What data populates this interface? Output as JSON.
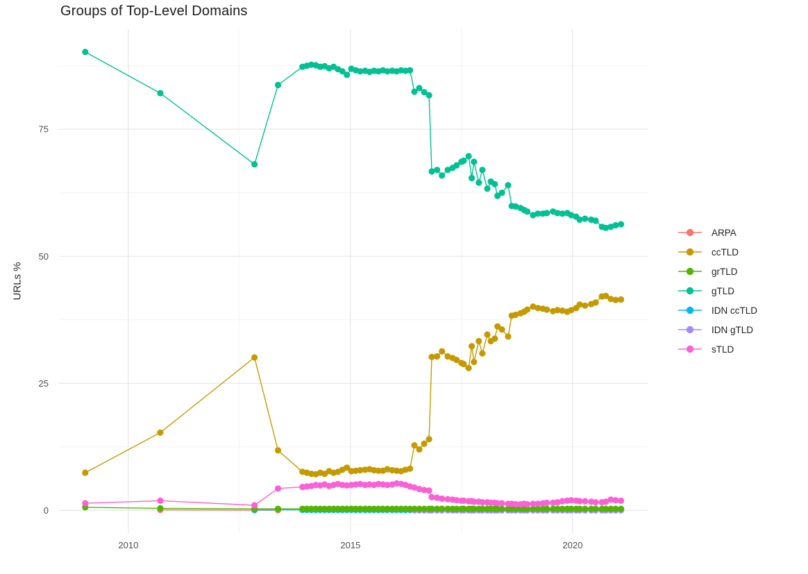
{
  "chart_data": {
    "type": "line",
    "title": "Groups of Top-Level Domains",
    "xlabel": "",
    "ylabel": "URLs %",
    "x_ticks": [
      2010,
      2015,
      2020
    ],
    "x_minor_ticks": [
      2012.5,
      2017.5
    ],
    "y_ticks": [
      0,
      25,
      50,
      75
    ],
    "y_minor_ticks": [
      12.5,
      37.5,
      62.5,
      87.5
    ],
    "xlim": [
      2008.44,
      2021.69
    ],
    "ylim": [
      -4.6,
      94.7
    ],
    "grid": true,
    "legend_position": "right",
    "draw_order": [
      "ARPA",
      "IDN ccTLD",
      "IDN gTLD",
      "grTLD",
      "ccTLD",
      "gTLD",
      "sTLD"
    ],
    "series": [
      {
        "name": "ARPA",
        "color": "#F8766D",
        "x": [
          2010.72,
          2012.84,
          2013.37
        ],
        "y": [
          0.1,
          0.05,
          0.05
        ]
      },
      {
        "name": "ccTLD",
        "color": "#C49A00",
        "x": [
          2009.03,
          2010.72,
          2012.84,
          2013.37,
          2013.92,
          2014.02,
          2014.12,
          2014.22,
          2014.32,
          2014.42,
          2014.52,
          2014.62,
          2014.72,
          2014.82,
          2014.92,
          2015.02,
          2015.12,
          2015.22,
          2015.33,
          2015.43,
          2015.53,
          2015.63,
          2015.73,
          2015.83,
          2015.94,
          2016.04,
          2016.14,
          2016.24,
          2016.34,
          2016.44,
          2016.55,
          2016.66,
          2016.77,
          2016.83,
          2016.95,
          2017.06,
          2017.19,
          2017.3,
          2017.39,
          2017.5,
          2017.55,
          2017.66,
          2017.73,
          2017.78,
          2017.89,
          2017.97,
          2018.08,
          2018.16,
          2018.25,
          2018.31,
          2018.41,
          2018.55,
          2018.63,
          2018.72,
          2018.83,
          2018.91,
          2018.98,
          2019.11,
          2019.22,
          2019.33,
          2019.42,
          2019.56,
          2019.66,
          2019.77,
          2019.88,
          2019.97,
          2020.08,
          2020.16,
          2020.28,
          2020.42,
          2020.52,
          2020.66,
          2020.75,
          2020.86,
          2020.97,
          2021.09
        ],
        "y": [
          7.4,
          15.3,
          30.1,
          11.8,
          7.6,
          7.4,
          7.2,
          7.1,
          7.4,
          7.2,
          7.7,
          7.4,
          7.6,
          8.0,
          8.4,
          7.7,
          7.8,
          7.9,
          8.0,
          8.1,
          7.9,
          7.8,
          7.8,
          8.1,
          7.9,
          7.8,
          7.7,
          8.0,
          8.2,
          12.8,
          12.0,
          13.1,
          14.0,
          30.2,
          30.3,
          31.3,
          30.3,
          30.0,
          29.6,
          29.0,
          28.8,
          28.0,
          32.3,
          29.2,
          33.3,
          30.9,
          34.6,
          33.3,
          33.8,
          36.2,
          35.6,
          34.2,
          38.3,
          38.5,
          38.8,
          39.1,
          39.5,
          40.1,
          39.8,
          39.7,
          39.5,
          39.2,
          39.4,
          39.3,
          39.1,
          39.4,
          39.8,
          40.5,
          40.3,
          40.6,
          40.9,
          42.1,
          42.2,
          41.6,
          41.4,
          41.5
        ]
      },
      {
        "name": "grTLD",
        "color": "#53B400",
        "x": [
          2009.03,
          2010.72,
          2012.84,
          2013.37,
          2013.92,
          2014.02,
          2014.12,
          2014.22,
          2014.32,
          2014.42,
          2014.52,
          2014.62,
          2014.72,
          2014.82,
          2014.92,
          2015.02,
          2015.12,
          2015.22,
          2015.33,
          2015.43,
          2015.53,
          2015.63,
          2015.73,
          2015.83,
          2015.94,
          2016.04,
          2016.14,
          2016.24,
          2016.34,
          2016.44,
          2016.55,
          2016.66,
          2016.77,
          2016.83,
          2016.95,
          2017.06,
          2017.19,
          2017.3,
          2017.39,
          2017.5,
          2017.55,
          2017.66,
          2017.73,
          2017.78,
          2017.89,
          2017.97,
          2018.08,
          2018.16,
          2018.25,
          2018.31,
          2018.41,
          2018.55,
          2018.63,
          2018.72,
          2018.83,
          2018.91,
          2018.98,
          2019.11,
          2019.22,
          2019.33,
          2019.42,
          2019.56,
          2019.66,
          2019.77,
          2019.88,
          2019.97,
          2020.08,
          2020.16,
          2020.28,
          2020.42,
          2020.52,
          2020.66,
          2020.75,
          2020.86,
          2020.97,
          2021.09
        ],
        "y": [
          0.6,
          0.4,
          0.3,
          0.3,
          0.3,
          0.3,
          0.3,
          0.3,
          0.3,
          0.3,
          0.3,
          0.3,
          0.3,
          0.3,
          0.3,
          0.3,
          0.3,
          0.3,
          0.3,
          0.3,
          0.3,
          0.3,
          0.3,
          0.3,
          0.3,
          0.3,
          0.3,
          0.3,
          0.3,
          0.3,
          0.3,
          0.3,
          0.3,
          0.3,
          0.3,
          0.3,
          0.3,
          0.3,
          0.3,
          0.3,
          0.3,
          0.3,
          0.3,
          0.3,
          0.3,
          0.3,
          0.3,
          0.3,
          0.3,
          0.3,
          0.3,
          0.3,
          0.3,
          0.3,
          0.3,
          0.3,
          0.3,
          0.3,
          0.3,
          0.3,
          0.3,
          0.3,
          0.3,
          0.3,
          0.3,
          0.3,
          0.3,
          0.3,
          0.3,
          0.3,
          0.3,
          0.3,
          0.3,
          0.3,
          0.3,
          0.3
        ]
      },
      {
        "name": "gTLD",
        "color": "#00C094",
        "x": [
          2009.03,
          2010.72,
          2012.84,
          2013.37,
          2013.92,
          2014.02,
          2014.12,
          2014.22,
          2014.32,
          2014.42,
          2014.52,
          2014.62,
          2014.72,
          2014.82,
          2014.92,
          2015.02,
          2015.12,
          2015.22,
          2015.33,
          2015.43,
          2015.53,
          2015.63,
          2015.73,
          2015.83,
          2015.94,
          2016.04,
          2016.14,
          2016.24,
          2016.34,
          2016.44,
          2016.55,
          2016.66,
          2016.77,
          2016.83,
          2016.95,
          2017.06,
          2017.19,
          2017.3,
          2017.39,
          2017.5,
          2017.55,
          2017.66,
          2017.73,
          2017.78,
          2017.89,
          2017.97,
          2018.08,
          2018.16,
          2018.25,
          2018.31,
          2018.41,
          2018.55,
          2018.63,
          2018.72,
          2018.83,
          2018.91,
          2018.98,
          2019.11,
          2019.22,
          2019.33,
          2019.42,
          2019.56,
          2019.66,
          2019.77,
          2019.88,
          2019.97,
          2020.08,
          2020.16,
          2020.28,
          2020.42,
          2020.52,
          2020.66,
          2020.75,
          2020.86,
          2020.97,
          2021.09
        ],
        "y": [
          90.2,
          82.1,
          68.1,
          83.7,
          87.3,
          87.5,
          87.7,
          87.6,
          87.3,
          87.4,
          87.0,
          87.3,
          86.8,
          86.4,
          85.7,
          86.9,
          86.6,
          86.4,
          86.5,
          86.3,
          86.5,
          86.4,
          86.6,
          86.4,
          86.5,
          86.4,
          86.6,
          86.5,
          86.6,
          82.4,
          83.1,
          82.3,
          81.7,
          66.7,
          67.0,
          65.9,
          67.0,
          67.4,
          67.9,
          68.6,
          68.8,
          69.7,
          65.4,
          68.6,
          64.5,
          67.0,
          63.3,
          64.7,
          64.2,
          61.9,
          62.5,
          64.0,
          59.9,
          59.8,
          59.5,
          59.1,
          58.8,
          58.1,
          58.4,
          58.4,
          58.5,
          58.8,
          58.5,
          58.4,
          58.5,
          58.1,
          57.8,
          57.2,
          57.4,
          57.2,
          57.0,
          55.8,
          55.6,
          55.8,
          56.1,
          56.3
        ]
      },
      {
        "name": "IDN ccTLD",
        "color": "#00B6EB",
        "x": [
          2012.84,
          2013.92,
          2014.02,
          2014.12,
          2014.22,
          2014.32,
          2014.42,
          2014.52,
          2014.62,
          2014.72,
          2014.82,
          2014.92,
          2015.02,
          2015.12,
          2015.22,
          2015.33,
          2015.43,
          2015.53,
          2015.63,
          2015.73,
          2015.83,
          2015.94,
          2016.04,
          2016.14,
          2016.24,
          2016.34,
          2016.44,
          2016.55,
          2016.66,
          2016.77,
          2016.83,
          2016.95,
          2017.06,
          2017.19,
          2017.3,
          2017.39,
          2017.5,
          2017.55,
          2017.66,
          2017.73,
          2017.78,
          2017.89,
          2017.97,
          2018.08,
          2018.16,
          2018.25,
          2018.31,
          2018.41,
          2018.55,
          2018.63,
          2018.72,
          2018.83,
          2018.91,
          2018.98,
          2019.11,
          2019.22,
          2019.33,
          2019.42,
          2019.56,
          2019.66,
          2019.77,
          2019.88,
          2019.97,
          2020.08,
          2020.16,
          2020.28,
          2020.42,
          2020.52,
          2020.66,
          2020.75,
          2020.86,
          2020.97,
          2021.09
        ],
        "y": 0.1
      },
      {
        "name": "IDN gTLD",
        "color": "#A58AFF",
        "x": [
          2016.44,
          2016.55,
          2016.66,
          2016.77,
          2016.83,
          2016.95,
          2017.06,
          2017.19,
          2017.3,
          2017.39,
          2017.5,
          2017.55,
          2017.66,
          2017.73,
          2017.78,
          2017.89,
          2017.97,
          2018.08,
          2018.16,
          2018.25,
          2018.31,
          2018.41,
          2018.55,
          2018.63,
          2018.72,
          2018.83,
          2018.91,
          2018.98,
          2019.11,
          2019.22,
          2019.33,
          2019.42,
          2019.56,
          2019.66,
          2019.77,
          2019.88,
          2019.97,
          2020.08,
          2020.16,
          2020.28,
          2020.42,
          2020.52,
          2020.66,
          2020.75,
          2020.86,
          2020.97,
          2021.09
        ],
        "y": 0.0
      },
      {
        "name": "sTLD",
        "color": "#FB61D7",
        "x": [
          2009.03,
          2010.72,
          2012.84,
          2013.37,
          2013.92,
          2014.02,
          2014.12,
          2014.22,
          2014.32,
          2014.42,
          2014.52,
          2014.62,
          2014.72,
          2014.82,
          2014.92,
          2015.02,
          2015.12,
          2015.22,
          2015.33,
          2015.43,
          2015.53,
          2015.63,
          2015.73,
          2015.83,
          2015.94,
          2016.04,
          2016.14,
          2016.24,
          2016.34,
          2016.44,
          2016.55,
          2016.66,
          2016.77,
          2016.83,
          2016.95,
          2017.06,
          2017.19,
          2017.3,
          2017.39,
          2017.5,
          2017.55,
          2017.66,
          2017.73,
          2017.78,
          2017.89,
          2017.97,
          2018.08,
          2018.16,
          2018.25,
          2018.31,
          2018.41,
          2018.55,
          2018.63,
          2018.72,
          2018.83,
          2018.91,
          2018.98,
          2019.11,
          2019.22,
          2019.33,
          2019.42,
          2019.56,
          2019.66,
          2019.77,
          2019.88,
          2019.97,
          2020.08,
          2020.16,
          2020.28,
          2020.42,
          2020.52,
          2020.66,
          2020.75,
          2020.86,
          2020.97,
          2021.09
        ],
        "y": [
          1.4,
          1.9,
          1.0,
          4.3,
          4.6,
          4.7,
          4.8,
          5.0,
          4.9,
          5.1,
          4.8,
          5.0,
          5.2,
          5.0,
          4.9,
          5.0,
          5.1,
          5.2,
          5.0,
          5.1,
          5.0,
          5.2,
          5.1,
          5.0,
          5.1,
          5.3,
          5.2,
          5.0,
          4.7,
          4.5,
          4.2,
          4.0,
          3.9,
          2.6,
          2.5,
          2.3,
          2.2,
          2.1,
          2.0,
          1.9,
          1.9,
          1.8,
          1.8,
          1.7,
          1.7,
          1.6,
          1.6,
          1.5,
          1.5,
          1.4,
          1.4,
          1.3,
          1.3,
          1.2,
          1.2,
          1.3,
          1.2,
          1.3,
          1.3,
          1.4,
          1.5,
          1.5,
          1.6,
          1.8,
          1.9,
          2.0,
          1.9,
          1.8,
          1.8,
          1.7,
          1.6,
          1.6,
          1.7,
          2.1,
          2.0,
          1.9
        ]
      }
    ]
  }
}
